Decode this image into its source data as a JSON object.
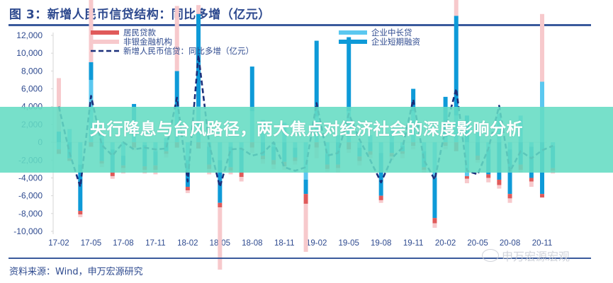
{
  "header": {
    "title": "图 3：新增人民币信贷结构：同比多增（亿元）"
  },
  "footer": {
    "source": "资料来源：Wind，申万宏源研究",
    "watermark": "申万宏源宏观"
  },
  "banner": {
    "headline": "央行降息与台风路径，两大焦点对经济社会的深度影响分析"
  },
  "colors": {
    "household_loans": "#e05a5a",
    "nonbank_fi": "#f7c9cc",
    "total_new_rmb_loans_line": "#1b2f7a",
    "corp_mid_long_loans": "#5bc8f0",
    "corp_short_term_financing": "#0e9ad8",
    "banner_bg": "#64dcc3",
    "axis_text": "#2e4a8f"
  },
  "chart_data": {
    "type": "bar+line",
    "title": "图 3：新增人民币信贷结构：同比多增（亿元）",
    "xlabel": "",
    "ylabel": "亿元",
    "ylim": [
      -10000,
      12000
    ],
    "yticks": [
      "12,000",
      "10,000",
      "8,000",
      "6,000",
      "4,000",
      "2,000",
      "0",
      "-2,000",
      "-4,000",
      "-6,000",
      "-8,000",
      "-10,000"
    ],
    "x_tick_labels": [
      "17-02",
      "17-05",
      "17-08",
      "17-11",
      "18-02",
      "18-05",
      "18-08",
      "18-11",
      "19-02",
      "19-05",
      "19-08",
      "19-11",
      "20-02",
      "20-05",
      "20-08",
      "20-11"
    ],
    "grid": false,
    "legend_position": "top",
    "legend": [
      "居民贷款",
      "非银金融机构",
      "新增人民币信贷：同比多增（亿元）",
      "企业中长贷",
      "企业短期融资"
    ],
    "x": [
      "17-02",
      "17-03",
      "17-04",
      "17-05",
      "17-06",
      "17-07",
      "17-08",
      "17-09",
      "17-10",
      "17-11",
      "17-12",
      "18-01",
      "18-02",
      "18-03",
      "18-04",
      "18-05",
      "18-06",
      "18-07",
      "18-08",
      "18-09",
      "18-10",
      "18-11",
      "18-12",
      "19-01",
      "19-02",
      "19-03",
      "19-04",
      "19-05",
      "19-06",
      "19-07",
      "19-08",
      "19-09",
      "19-10",
      "19-11",
      "19-12",
      "20-01",
      "20-02",
      "20-03",
      "20-04",
      "20-05",
      "20-06",
      "20-07",
      "20-08",
      "20-09",
      "20-10",
      "20-11",
      "20-12"
    ],
    "series": [
      {
        "name": "新增人民币信贷：同比多增（亿元）",
        "type": "line",
        "style": "dashed",
        "values": [
          4000,
          -1200,
          -5000,
          5200,
          -300,
          -1500,
          0,
          -800,
          -600,
          -800,
          -700,
          5000,
          -4400,
          9800,
          -200,
          -5000,
          -800,
          -700,
          -1500,
          -1200,
          0,
          -2800,
          -3200,
          -2800,
          4400,
          -1500,
          -1200,
          3200,
          300,
          -2000,
          -4500,
          -1800,
          -600,
          4800,
          -2000,
          -4200,
          1500,
          6000,
          -3200,
          -3600,
          -700,
          4100,
          -3300,
          -1000,
          -1800,
          -900,
          -400
        ]
      },
      {
        "name": "企业中长贷",
        "type": "bar",
        "values": [
          -800,
          1500,
          -2500,
          7000,
          1000,
          -800,
          -1500,
          2500,
          -300,
          -1000,
          500,
          3800,
          -2000,
          4000,
          -500,
          -2000,
          -500,
          -800,
          3500,
          2500,
          -500,
          2200,
          -600,
          -4200,
          2900,
          -1300,
          800,
          3500,
          -600,
          800,
          -1200,
          1300,
          -400,
          3500,
          -1000,
          -4000,
          600,
          3000,
          -3800,
          2000,
          -800,
          3200,
          -800,
          3000,
          -500,
          6800,
          -400
        ]
      },
      {
        "name": "企业短期融资",
        "type": "bar",
        "values": [
          1200,
          -1800,
          -5200,
          2000,
          -2100,
          -2600,
          -1100,
          1800,
          -2400,
          -1600,
          -1000,
          4200,
          -3000,
          10400,
          -2000,
          -4800,
          -2300,
          -2600,
          5000,
          -1500,
          -1500,
          -2200,
          -1100,
          -1600,
          8500,
          -1200,
          -2500,
          8300,
          -1000,
          -1000,
          -4800,
          -1200,
          -600,
          2500,
          -1800,
          -4500,
          4500,
          11200,
          3000,
          -1500,
          -2800,
          -4200,
          -5000,
          -2500,
          -3500,
          -5800,
          -2500
        ]
      },
      {
        "name": "居民贷款",
        "type": "bar",
        "values": [
          -500,
          -300,
          -400,
          -500,
          -300,
          -400,
          -300,
          -600,
          -400,
          -500,
          -300,
          -600,
          -400,
          -700,
          -500,
          -500,
          -400,
          -500,
          -600,
          -400,
          -500,
          -500,
          -400,
          -1100,
          -600,
          -500,
          -400,
          -800,
          -500,
          -400,
          -500,
          -400,
          -300,
          -400,
          -300,
          -600,
          -400,
          -1000,
          -300,
          -500,
          -400,
          -600,
          -500,
          -600,
          -400,
          -400,
          -300
        ]
      },
      {
        "name": "非银金融机构",
        "type": "bar",
        "values": [
          6000,
          0,
          -300,
          7400,
          -400,
          -300,
          -600,
          -300,
          -400,
          -500,
          -400,
          7300,
          -300,
          1000,
          -600,
          -7000,
          -400,
          -500,
          -600,
          -500,
          -500,
          -400,
          -400,
          -5400,
          -1200,
          -300,
          -500,
          -400,
          -500,
          -400,
          -300,
          -400,
          -500,
          -400,
          -300,
          -500,
          -400,
          1800,
          -500,
          -300,
          -500,
          -400,
          -500,
          -300,
          -600,
          7600,
          -300
        ]
      }
    ]
  }
}
